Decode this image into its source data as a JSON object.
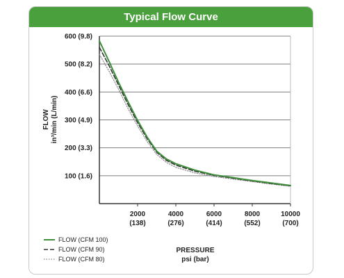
{
  "chart_data": {
    "type": "line",
    "title": "Typical Flow Curve",
    "xlabel": [
      "PRESSURE",
      "psi (bar)"
    ],
    "ylabel": [
      "FLOW",
      "in³/min  (L/min)"
    ],
    "xlim": [
      0,
      10000
    ],
    "ylim": [
      0,
      600
    ],
    "x_ticks": [
      {
        "value": 2000,
        "label": "2000",
        "sub": "(138)"
      },
      {
        "value": 4000,
        "label": "4000",
        "sub": "(276)"
      },
      {
        "value": 6000,
        "label": "6000",
        "sub": "(414)"
      },
      {
        "value": 8000,
        "label": "8000",
        "sub": "(552)"
      },
      {
        "value": 10000,
        "label": "10000",
        "sub": "(700)"
      }
    ],
    "y_ticks": [
      {
        "value": 100,
        "label": "100  (1.6)"
      },
      {
        "value": 200,
        "label": "200  (3.3)"
      },
      {
        "value": 300,
        "label": "300  (4.9)"
      },
      {
        "value": 400,
        "label": "400  (6.6)"
      },
      {
        "value": 500,
        "label": "500  (8.2)"
      },
      {
        "value": 600,
        "label": "600  (9.8)"
      }
    ],
    "grid": "horizontal",
    "legend_position": "bottom-left",
    "series": [
      {
        "name": "FLOW (CFM 100)",
        "style": "solid",
        "color": "#3f8f3a",
        "x": [
          0,
          500,
          1000,
          1500,
          2000,
          2500,
          3000,
          3500,
          4000,
          5000,
          6000,
          7000,
          8000,
          9000,
          10000
        ],
        "y": [
          583,
          510,
          435,
          365,
          298,
          238,
          188,
          160,
          143,
          120,
          103,
          93,
          83,
          74,
          65
        ]
      },
      {
        "name": "FLOW (CFM 90)",
        "style": "dashed",
        "color": "#333333",
        "x": [
          0,
          500,
          1000,
          1500,
          2000,
          2500,
          3000,
          3500,
          4000,
          5000,
          6000,
          7000,
          8000,
          9000,
          10000
        ],
        "y": [
          560,
          495,
          425,
          355,
          290,
          232,
          184,
          155,
          138,
          116,
          101,
          91,
          81,
          72,
          64
        ]
      },
      {
        "name": "FLOW (CFM 80)",
        "style": "dotted",
        "color": "#888888",
        "x": [
          0,
          500,
          1000,
          1500,
          2000,
          2500,
          3000,
          3500,
          4000,
          5000,
          6000,
          7000,
          8000,
          9000,
          10000
        ],
        "y": [
          535,
          475,
          410,
          340,
          278,
          222,
          176,
          148,
          130,
          110,
          97,
          88,
          79,
          70,
          62
        ]
      }
    ]
  }
}
